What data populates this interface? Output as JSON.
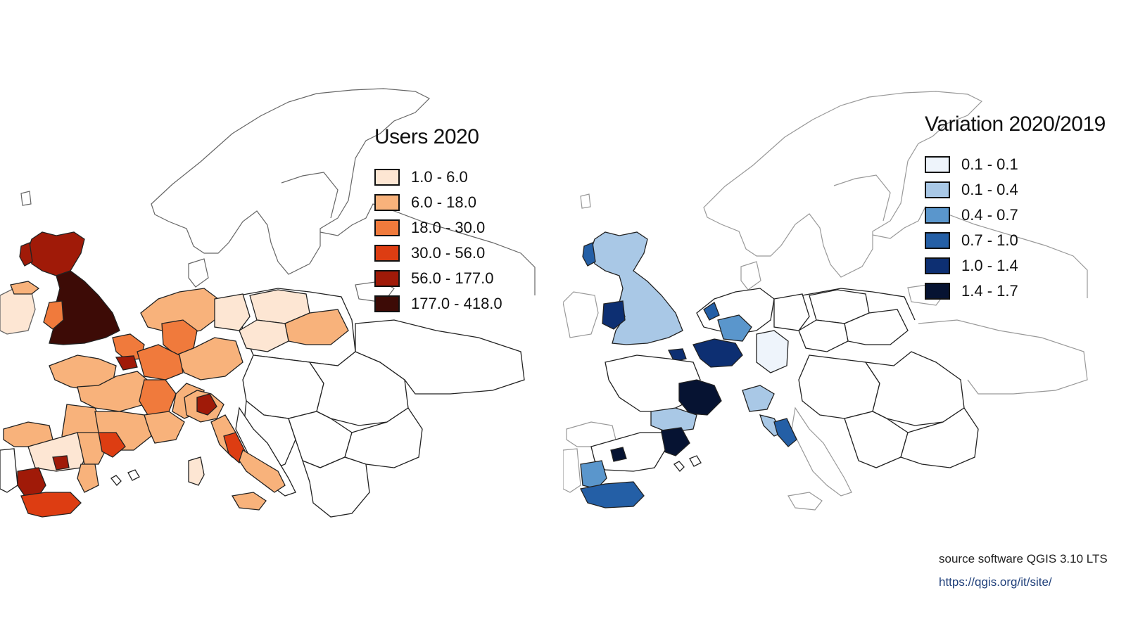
{
  "maps": {
    "users": {
      "legend_title": "Users 2020",
      "classes": [
        {
          "label": "1.0 - 6.0",
          "color": "#fde6d3"
        },
        {
          "label": "6.0 - 18.0",
          "color": "#f8b27b"
        },
        {
          "label": "18.0 - 30.0",
          "color": "#f07a3c"
        },
        {
          "label": "30.0 - 56.0",
          "color": "#dd3d12"
        },
        {
          "label": "56.0 - 177.0",
          "color": "#a01a08"
        },
        {
          "label": "177.0 - 418.0",
          "color": "#3d0b06"
        }
      ]
    },
    "variation": {
      "legend_title": "Variation 2020/2019",
      "classes": [
        {
          "label": "0.1 - 0.1",
          "color": "#eef4fb"
        },
        {
          "label": "0.1 - 0.4",
          "color": "#a9c8e6"
        },
        {
          "label": "0.4 - 0.7",
          "color": "#5a96cc"
        },
        {
          "label": "0.7 - 1.0",
          "color": "#245fa6"
        },
        {
          "label": "1.0 - 1.4",
          "color": "#0d2f72"
        },
        {
          "label": "1.4 - 1.7",
          "color": "#061332"
        }
      ]
    }
  },
  "credits": {
    "software": "source software QGIS 3.10 LTS",
    "url": "https://qgis.org/it/site/"
  }
}
